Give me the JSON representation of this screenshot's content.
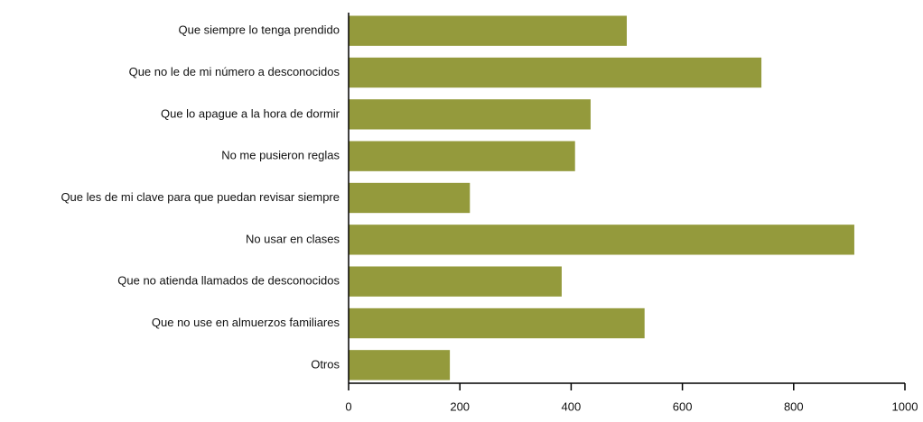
{
  "chart_data": {
    "type": "hbar",
    "categories": [
      "Que siempre lo tenga prendido",
      "Que no le de mi número a desconocidos",
      "Que lo apague a la hora de dormir",
      "No me pusieron reglas",
      "Que les de mi clave para que puedan revisar siempre",
      "No usar en clases",
      "Que no atienda llamados de desconocidos",
      "Que no use en almuerzos familiares",
      "Otros"
    ],
    "values": [
      500,
      742,
      435,
      407,
      218,
      909,
      383,
      532,
      182
    ],
    "color": "#949a3c",
    "xlim": [
      0,
      1000
    ],
    "xticks": [
      0,
      200,
      400,
      600,
      800,
      1000
    ],
    "grid": false
  }
}
